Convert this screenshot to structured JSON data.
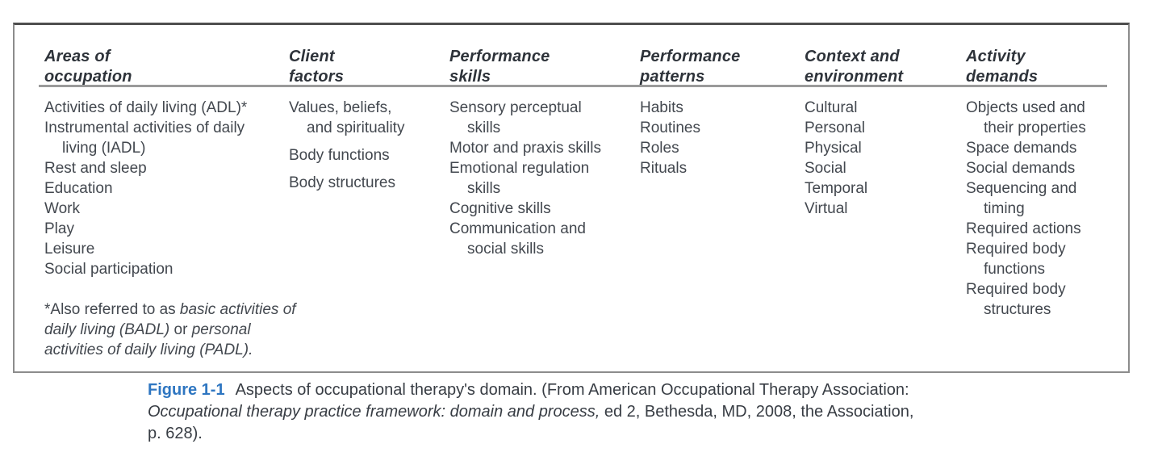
{
  "figure_table": {
    "columns": [
      {
        "id": "areas-of-occupation",
        "header_lines": [
          "Areas of",
          "occupation"
        ],
        "entries": [
          {
            "lines": [
              "Activities of daily living (ADL)*"
            ]
          },
          {
            "lines": [
              "Instrumental activities of daily",
              "living (IADL)"
            ]
          },
          {
            "lines": [
              "Rest and sleep"
            ]
          },
          {
            "lines": [
              "Education"
            ]
          },
          {
            "lines": [
              "Work"
            ]
          },
          {
            "lines": [
              "Play"
            ]
          },
          {
            "lines": [
              "Leisure"
            ]
          },
          {
            "lines": [
              "Social participation"
            ]
          }
        ]
      },
      {
        "id": "client-factors",
        "header_lines": [
          "Client",
          "factors"
        ],
        "spaced": true,
        "entries": [
          {
            "lines": [
              "Values, beliefs,",
              "and spirituality"
            ]
          },
          {
            "lines": [
              "Body functions"
            ]
          },
          {
            "lines": [
              "Body structures"
            ]
          }
        ]
      },
      {
        "id": "performance-skills",
        "header_lines": [
          "Performance",
          "skills"
        ],
        "entries": [
          {
            "lines": [
              "Sensory perceptual",
              "skills"
            ]
          },
          {
            "lines": [
              "Motor and praxis skills"
            ]
          },
          {
            "lines": [
              "Emotional regulation",
              "skills"
            ]
          },
          {
            "lines": [
              "Cognitive skills"
            ]
          },
          {
            "lines": [
              "Communication and",
              "social skills"
            ]
          }
        ]
      },
      {
        "id": "performance-patterns",
        "header_lines": [
          "Performance",
          "patterns"
        ],
        "entries": [
          {
            "lines": [
              "Habits"
            ]
          },
          {
            "lines": [
              "Routines"
            ]
          },
          {
            "lines": [
              "Roles"
            ]
          },
          {
            "lines": [
              "Rituals"
            ]
          }
        ]
      },
      {
        "id": "context-and-environment",
        "header_lines": [
          "Context and",
          "environment"
        ],
        "entries": [
          {
            "lines": [
              "Cultural"
            ]
          },
          {
            "lines": [
              "Personal"
            ]
          },
          {
            "lines": [
              "Physical"
            ]
          },
          {
            "lines": [
              "Social"
            ]
          },
          {
            "lines": [
              "Temporal"
            ]
          },
          {
            "lines": [
              "Virtual"
            ]
          }
        ]
      },
      {
        "id": "activity-demands",
        "header_lines": [
          "Activity",
          "demands"
        ],
        "entries": [
          {
            "lines": [
              "Objects used and",
              "their properties"
            ]
          },
          {
            "lines": [
              "Space demands"
            ]
          },
          {
            "lines": [
              "Social demands"
            ]
          },
          {
            "lines": [
              "Sequencing and",
              "timing"
            ]
          },
          {
            "lines": [
              "Required actions"
            ]
          },
          {
            "lines": [
              "Required body",
              "functions"
            ]
          },
          {
            "lines": [
              "Required body",
              "structures"
            ]
          }
        ]
      }
    ],
    "footnote_lines": [
      [
        {
          "text": "*Also referred to as ",
          "italic": false
        },
        {
          "text": "basic activities of",
          "italic": true
        }
      ],
      [
        {
          "text": "daily living (BADL)",
          "italic": true
        },
        {
          "text": " or ",
          "italic": false
        },
        {
          "text": "personal",
          "italic": true
        }
      ],
      [
        {
          "text": "activities of daily living (PADL).",
          "italic": true
        }
      ]
    ]
  },
  "caption": {
    "label": "Figure 1-1",
    "lines": [
      [
        {
          "text": "Aspects of occupational therapy's domain. (From American Occupational Therapy Association:",
          "style": "normal"
        }
      ],
      [
        {
          "text": "Occupational therapy practice framework: domain and process,",
          "style": "italic"
        },
        {
          "text": " ed 2, Bethesda, MD, 2008, the Association,",
          "style": "normal"
        }
      ],
      [
        {
          "text": "p. 628).",
          "style": "normal"
        }
      ]
    ]
  },
  "colors": {
    "figure_label_blue": "#2e76c1",
    "body_text": "#43484f",
    "header_text": "#2e333a",
    "box_border": "#8c8c8c",
    "header_rule": "#9a9a9a"
  }
}
